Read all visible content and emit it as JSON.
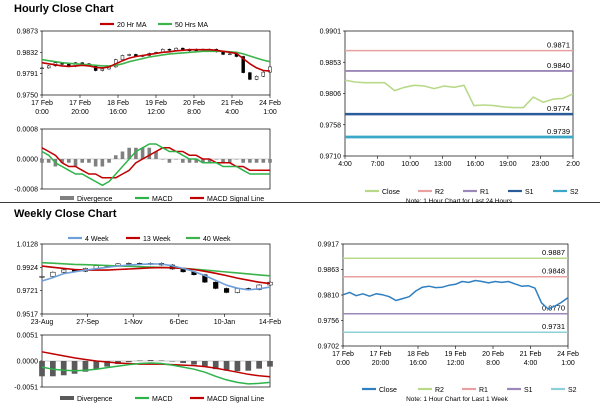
{
  "sections": {
    "hourly_title": "Hourly Close Chart",
    "weekly_title": "Weekly Close Chart"
  },
  "colors": {
    "ma20": "#c00000",
    "ma50": "#3cb44b",
    "candle": "#000000",
    "macd": "#2db34a",
    "signal": "#c00000",
    "divergence": "#808080",
    "close_light": "#b9d98a",
    "close_blue": "#2f7fc1",
    "r2": "#e8a0a0",
    "r2_weekly": "#b9d98a",
    "r1": "#9b87b8",
    "r1_weekly": "#e8a0a0",
    "s1": "#2b5c9a",
    "s1_weekly": "#9b87b8",
    "s2": "#3aa7c8",
    "s2_weekly": "#8fd0d8"
  },
  "chart_data": [
    {
      "id": "hourly_price",
      "type": "line",
      "legend": [
        "20 Hr MA",
        "50 Hrs MA"
      ],
      "y_ticks": [
        "0.9873",
        "0.9832",
        "0.9791",
        "0.9750"
      ],
      "ylim": [
        0.975,
        0.9873
      ],
      "x_ticks": [
        [
          "17 Feb",
          "0:00"
        ],
        [
          "17 Feb",
          "20:00"
        ],
        [
          "18 Feb",
          "16:00"
        ],
        [
          "19 Feb",
          "12:00"
        ],
        [
          "20 Feb",
          "8:00"
        ],
        [
          "21 Feb",
          "4:00"
        ],
        [
          "24 Feb",
          "1:00"
        ]
      ],
      "close": [
        0.9802,
        0.9806,
        0.9812,
        0.9809,
        0.9805,
        0.9812,
        0.981,
        0.9806,
        0.9797,
        0.98,
        0.9804,
        0.9818,
        0.9826,
        0.9828,
        0.9824,
        0.9826,
        0.983,
        0.9832,
        0.9838,
        0.9836,
        0.984,
        0.9838,
        0.9835,
        0.9838,
        0.9836,
        0.9838,
        0.9833,
        0.9828,
        0.9829,
        0.9824,
        0.9793,
        0.978,
        0.9786,
        0.9794,
        0.9804
      ],
      "ma20": [
        0.9812,
        0.981,
        0.9808,
        0.9806,
        0.9805,
        0.9806,
        0.9807,
        0.9806,
        0.9803,
        0.9802,
        0.9804,
        0.981,
        0.9816,
        0.9821,
        0.9824,
        0.9826,
        0.9828,
        0.983,
        0.9832,
        0.9833,
        0.9835,
        0.9836,
        0.9837,
        0.9837,
        0.9837,
        0.9837,
        0.9836,
        0.9834,
        0.9832,
        0.983,
        0.982,
        0.981,
        0.9802,
        0.9797,
        0.9796
      ],
      "ma50": [
        0.9818,
        0.9816,
        0.9814,
        0.9812,
        0.9811,
        0.981,
        0.9809,
        0.9808,
        0.9807,
        0.9806,
        0.9806,
        0.9807,
        0.981,
        0.9814,
        0.9817,
        0.982,
        0.9823,
        0.9825,
        0.9827,
        0.9829,
        0.983,
        0.9831,
        0.9832,
        0.9833,
        0.9834,
        0.9834,
        0.9834,
        0.9834,
        0.9833,
        0.9832,
        0.9829,
        0.9825,
        0.9821,
        0.9817,
        0.9814
      ]
    },
    {
      "id": "hourly_macd",
      "type": "bar",
      "legend": [
        "Divergence",
        "MACD",
        "MACD Signal Line"
      ],
      "y_ticks": [
        "0.0008",
        "0.0000",
        "-0.0008"
      ],
      "ylim": [
        -0.0008,
        0.0008
      ],
      "x_ticks": [
        [
          "17 Feb",
          "0:00"
        ],
        [
          "17 Feb",
          "20:00"
        ],
        [
          "18 Feb",
          "16:00"
        ],
        [
          "19 Feb",
          "12:00"
        ],
        [
          "20 Feb",
          "8:00"
        ],
        [
          "21 Feb",
          "4:00"
        ],
        [
          "24 Feb",
          "1:00"
        ]
      ],
      "macd": [
        0.0002,
        0.0001,
        -0.0001,
        -0.0002,
        -0.0003,
        -0.0004,
        -0.0004,
        -0.0005,
        -0.0006,
        -0.0007,
        -0.0006,
        -0.0004,
        -0.0002,
        0.0,
        0.0002,
        0.0003,
        0.0004,
        0.0004,
        0.0003,
        0.0002,
        0.0002,
        0.0001,
        0.0,
        0.0,
        -0.0001,
        -0.0001,
        -0.0001,
        -0.0002,
        -0.0002,
        -0.0002,
        -0.0003,
        -0.0004,
        -0.0004,
        -0.0004,
        -0.0004
      ],
      "signal": [
        0.0003,
        0.0002,
        0.0001,
        -0.0001,
        -0.0002,
        -0.0002,
        -0.0003,
        -0.0004,
        -0.0004,
        -0.0005,
        -0.0005,
        -0.0005,
        -0.0004,
        -0.0003,
        -0.0001,
        0.0,
        0.0001,
        0.0002,
        0.0003,
        0.0003,
        0.0002,
        0.0002,
        0.0001,
        0.0001,
        0.0,
        0.0,
        -0.0001,
        -0.0001,
        -0.0001,
        -0.0002,
        -0.0002,
        -0.0003,
        -0.0003,
        -0.0003,
        -0.0003
      ],
      "divergence": [
        -0.0001,
        -0.0001,
        -0.0002,
        -0.0001,
        -0.0001,
        -0.0002,
        -0.0001,
        -0.0001,
        -0.0002,
        -0.0002,
        -0.0001,
        0.0001,
        0.0002,
        0.0003,
        0.0003,
        0.0003,
        0.0003,
        0.0002,
        0.0,
        -0.0001,
        0.0,
        -0.0001,
        -0.0001,
        -0.0001,
        -0.0001,
        -0.0001,
        0.0,
        -0.0001,
        -0.0001,
        0.0,
        -0.0001,
        -0.0001,
        -0.0001,
        -0.0001,
        -0.0001
      ]
    },
    {
      "id": "hourly_close_24h",
      "type": "line",
      "y_ticks": [
        "0.9901",
        "0.9853",
        "0.9806",
        "0.9758",
        "0.9710"
      ],
      "ylim": [
        0.971,
        0.9901
      ],
      "x_ticks": [
        "4:00",
        "7:00",
        "10:00",
        "13:00",
        "16:00",
        "19:00",
        "23:00",
        "2:00"
      ],
      "close": [
        0.9826,
        0.9823,
        0.9822,
        0.9822,
        0.9822,
        0.981,
        0.9815,
        0.9818,
        0.9817,
        0.9813,
        0.9817,
        0.9815,
        0.9818,
        0.9787,
        0.9788,
        0.9787,
        0.9785,
        0.9784,
        0.9784,
        0.98,
        0.9792,
        0.9797,
        0.9798,
        0.9805
      ],
      "levels": [
        {
          "name": "R2",
          "value": 0.9871,
          "label": "0.9871"
        },
        {
          "name": "R1",
          "value": 0.984,
          "label": "0.9840"
        },
        {
          "name": "S1",
          "value": 0.9774,
          "label": "0.9774"
        },
        {
          "name": "S2",
          "value": 0.9739,
          "label": "0.9739"
        }
      ],
      "legend": [
        "Close",
        "R2",
        "R1",
        "S1",
        "S2"
      ],
      "note": "Note: 1 Hour Chart for Last 24 Hours"
    },
    {
      "id": "weekly_price",
      "type": "line",
      "legend": [
        "4 Week",
        "13 Week",
        "40 Week"
      ],
      "y_ticks": [
        "1.0128",
        "0.9924",
        "0.9721",
        "0.9517"
      ],
      "ylim": [
        0.9517,
        1.0128
      ],
      "x_ticks": [
        "23-Aug",
        "27-Sep",
        "1-Nov",
        "6-Dec",
        "10-Jan",
        "14-Feb"
      ],
      "close": [
        0.9845,
        0.9882,
        0.9902,
        0.989,
        0.9915,
        0.9938,
        0.994,
        0.9955,
        0.996,
        0.995,
        0.996,
        0.9945,
        0.991,
        0.9885,
        0.986,
        0.9795,
        0.974,
        0.9705,
        0.974,
        0.973,
        0.977,
        0.9795
      ],
      "w4": [
        0.9805,
        0.9835,
        0.987,
        0.9885,
        0.99,
        0.9912,
        0.9925,
        0.9936,
        0.9944,
        0.995,
        0.9954,
        0.9953,
        0.9938,
        0.9915,
        0.9888,
        0.9852,
        0.981,
        0.9768,
        0.9742,
        0.9728,
        0.9737,
        0.9752
      ],
      "w13": [
        0.9935,
        0.9925,
        0.9915,
        0.9905,
        0.99,
        0.99,
        0.99,
        0.9905,
        0.991,
        0.9915,
        0.992,
        0.9922,
        0.992,
        0.9915,
        0.9905,
        0.989,
        0.9872,
        0.9852,
        0.983,
        0.9812,
        0.9795,
        0.9782
      ],
      "w40": [
        0.9965,
        0.996,
        0.9955,
        0.995,
        0.9947,
        0.9944,
        0.994,
        0.9937,
        0.9933,
        0.993,
        0.9927,
        0.9924,
        0.992,
        0.9915,
        0.9908,
        0.99,
        0.9892,
        0.9884,
        0.9876,
        0.9867,
        0.9858,
        0.985
      ]
    },
    {
      "id": "weekly_macd",
      "type": "bar",
      "legend": [
        "Divergence",
        "MACD",
        "MACD Signal Line"
      ],
      "y_ticks": [
        "0.0051",
        "0.0000",
        "-0.0051"
      ],
      "ylim": [
        -0.0051,
        0.0051
      ],
      "x_ticks": [
        "23-Aug",
        "27-Sep",
        "1-Nov",
        "6-Dec",
        "10-Jan",
        "14-Feb"
      ],
      "macd": [
        -0.0012,
        -0.0016,
        -0.0018,
        -0.0019,
        -0.0018,
        -0.0016,
        -0.0013,
        -0.001,
        -0.0007,
        -0.0005,
        -0.0004,
        -0.0005,
        -0.0008,
        -0.0012,
        -0.0016,
        -0.0022,
        -0.003,
        -0.0037,
        -0.0042,
        -0.0045,
        -0.0044,
        -0.0042
      ],
      "signal": [
        0.0018,
        0.0014,
        0.001,
        0.0006,
        0.0003,
        0.0,
        -0.0002,
        -0.0004,
        -0.0005,
        -0.0006,
        -0.0006,
        -0.0006,
        -0.0007,
        -0.0008,
        -0.0009,
        -0.0011,
        -0.0014,
        -0.0018,
        -0.0022,
        -0.0026,
        -0.0029,
        -0.0031
      ],
      "divergence": [
        -0.003,
        -0.003,
        -0.0028,
        -0.0025,
        -0.0021,
        -0.0016,
        -0.0011,
        -0.0006,
        -0.0002,
        0.0001,
        0.0002,
        0.0001,
        -0.0001,
        -0.0004,
        -0.0007,
        -0.0011,
        -0.0016,
        -0.0019,
        -0.002,
        -0.0019,
        -0.0015,
        -0.0011
      ]
    },
    {
      "id": "weekly_close_1w",
      "type": "line",
      "y_ticks": [
        "0.9917",
        "0.9863",
        "0.9810",
        "0.9756",
        "0.9702"
      ],
      "ylim": [
        0.9702,
        0.9917
      ],
      "x_ticks": [
        [
          "17 Feb",
          "0:00"
        ],
        [
          "17 Feb",
          "20:00"
        ],
        [
          "18 Feb",
          "16:00"
        ],
        [
          "19 Feb",
          "12:00"
        ],
        [
          "20 Feb",
          "8:00"
        ],
        [
          "21 Feb",
          "4:00"
        ],
        [
          "24 Feb",
          "1:00"
        ]
      ],
      "close": [
        0.981,
        0.9815,
        0.9808,
        0.9812,
        0.9807,
        0.9812,
        0.981,
        0.9806,
        0.9798,
        0.9802,
        0.9806,
        0.9818,
        0.9826,
        0.9828,
        0.9825,
        0.9826,
        0.983,
        0.9832,
        0.9838,
        0.9836,
        0.984,
        0.9838,
        0.9835,
        0.9838,
        0.9836,
        0.9838,
        0.9833,
        0.9828,
        0.9829,
        0.9824,
        0.9793,
        0.978,
        0.9786,
        0.9794,
        0.9804
      ],
      "levels": [
        {
          "name": "R2",
          "value": 0.9887,
          "label": "0.9887"
        },
        {
          "name": "R1",
          "value": 0.9848,
          "label": "0.9848"
        },
        {
          "name": "S1",
          "value": 0.977,
          "label": "0.9770"
        },
        {
          "name": "S2",
          "value": 0.9731,
          "label": "0.9731"
        }
      ],
      "legend": [
        "Close",
        "R2",
        "R1",
        "S1",
        "S2"
      ],
      "note": "Note: 1 Hour Chart for Last 1 Week"
    }
  ]
}
